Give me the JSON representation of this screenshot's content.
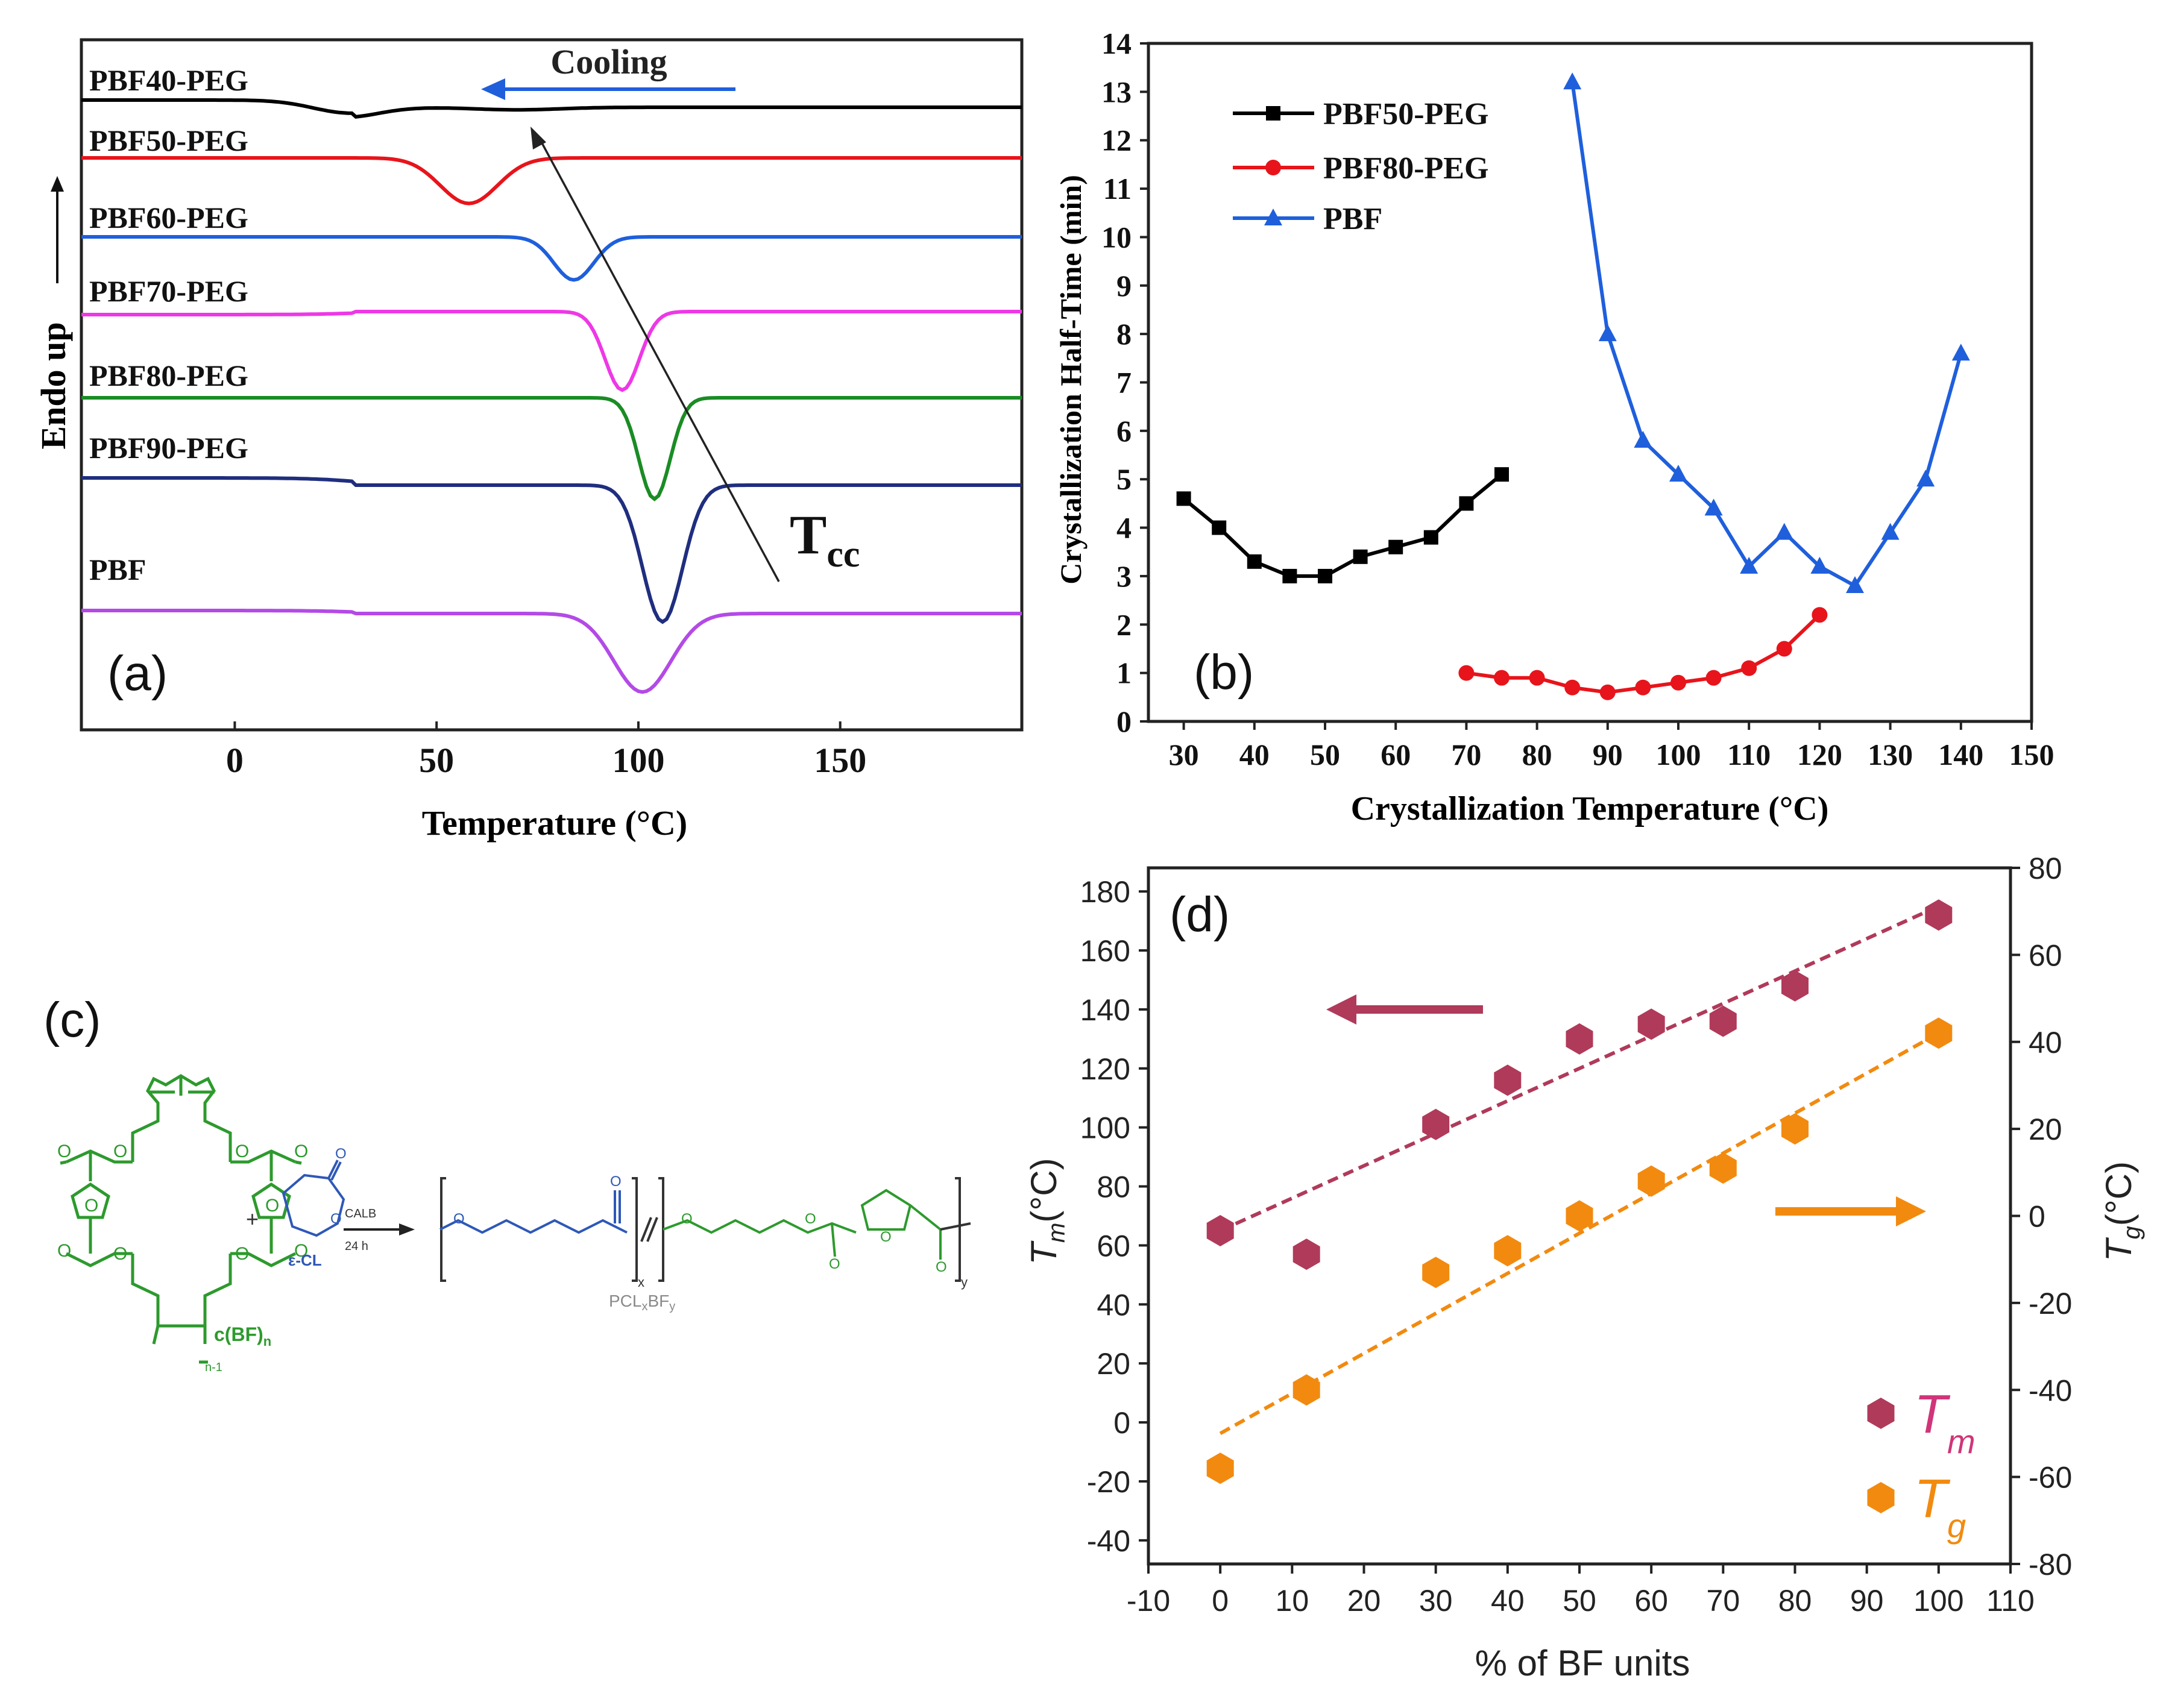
{
  "chart_data": [
    {
      "panel": "(a)",
      "type": "line",
      "title": "",
      "xlabel": "Temperature (°C)",
      "ylabel": "Endo up",
      "xlim": [
        -38,
        195
      ],
      "xticks": [
        0,
        50,
        100,
        150
      ],
      "annotation_cooling": "Cooling",
      "annotation_tcc": "T",
      "annotation_tcc_sub": "cc",
      "series": [
        {
          "name": "PBF40-PEG",
          "color": "#000000",
          "baseline": 12,
          "dips": [
            {
              "t": 27,
              "depth": 4,
              "w": 12
            },
            {
              "t": 70,
              "depth": 1,
              "w": 15
            }
          ]
        },
        {
          "name": "PBF50-PEG",
          "color": "#e8141b",
          "baseline": 0,
          "dips": [
            {
              "t": 58,
              "depth": 18,
              "w": 10
            }
          ]
        },
        {
          "name": "PBF60-PEG",
          "color": "#1f5fdc",
          "baseline": 0,
          "dips": [
            {
              "t": 84,
              "depth": 17,
              "w": 7
            }
          ]
        },
        {
          "name": "PBF70-PEG",
          "color": "#ee38e6",
          "baseline": -5,
          "dips": [
            {
              "t": 96,
              "depth": 31,
              "w": 6
            }
          ]
        },
        {
          "name": "PBF80-PEG",
          "color": "#1a8c24",
          "baseline": 0,
          "dips": [
            {
              "t": 104,
              "depth": 40,
              "w": 5.5
            }
          ]
        },
        {
          "name": "PBF90-PEG",
          "color": "#1f2e7e",
          "baseline": 12,
          "dips": [
            {
              "t": 106,
              "depth": 54,
              "w": 7
            }
          ]
        },
        {
          "name": "PBF",
          "color": "#b34ae6",
          "baseline": 5,
          "dips": [
            {
              "t": 101,
              "depth": 31,
              "w": 10
            }
          ]
        }
      ]
    },
    {
      "panel": "(b)",
      "type": "line",
      "xlabel": "Crystallization Temperature (°C)",
      "ylabel": "Crystallization Half-Time (min)",
      "xlim": [
        25,
        150
      ],
      "ylim": [
        0,
        14
      ],
      "xticks": [
        30,
        40,
        50,
        60,
        70,
        80,
        90,
        100,
        110,
        120,
        130,
        140,
        150
      ],
      "yticks": [
        0,
        1,
        2,
        3,
        4,
        5,
        6,
        7,
        8,
        9,
        10,
        11,
        12,
        13,
        14
      ],
      "series": [
        {
          "name": "PBF50-PEG",
          "color": "#000000",
          "marker": "square",
          "x": [
            30,
            35,
            40,
            45,
            50,
            55,
            60,
            65,
            70,
            75
          ],
          "y": [
            4.6,
            4.0,
            3.3,
            3.0,
            3.0,
            3.4,
            3.6,
            3.8,
            4.5,
            5.1
          ]
        },
        {
          "name": "PBF80-PEG",
          "color": "#e8141b",
          "marker": "circle",
          "x": [
            70,
            75,
            80,
            85,
            90,
            95,
            100,
            105,
            110,
            115,
            120
          ],
          "y": [
            1.0,
            0.9,
            0.9,
            0.7,
            0.6,
            0.7,
            0.8,
            0.9,
            1.1,
            1.5,
            2.2
          ]
        },
        {
          "name": "PBF",
          "color": "#1f5fdc",
          "marker": "triangle",
          "x": [
            85,
            90,
            95,
            100,
            105,
            110,
            115,
            120,
            125,
            130,
            135,
            140
          ],
          "y": [
            13.2,
            8.0,
            5.8,
            5.1,
            4.4,
            3.2,
            3.9,
            3.2,
            2.8,
            3.9,
            5.0,
            7.6
          ]
        }
      ]
    },
    {
      "panel": "(d)",
      "type": "scatter",
      "xlabel": "% of BF units",
      "ylabel_left": "T",
      "ylabel_left_sub": "m",
      "ylabel_left_unit": "(°C)",
      "ylabel_right": "T",
      "ylabel_right_sub": "g",
      "ylabel_right_unit": "(°C)",
      "xlim": [
        -10,
        110
      ],
      "ylim_left": [
        -48,
        188
      ],
      "ylim_right": [
        -80,
        80
      ],
      "xticks": [
        -10,
        0,
        10,
        20,
        30,
        40,
        50,
        60,
        70,
        80,
        90,
        100,
        110
      ],
      "yticks_left": [
        -40,
        -20,
        0,
        20,
        40,
        60,
        80,
        100,
        120,
        140,
        160,
        180
      ],
      "yticks_right": [
        -80,
        -60,
        -40,
        -20,
        0,
        20,
        40,
        60,
        80
      ],
      "series": [
        {
          "name": "T",
          "sub": "m",
          "color": "#b03a5a",
          "label_color": "#d0357a",
          "axis": "left",
          "x": [
            0,
            12,
            30,
            40,
            50,
            60,
            70,
            80,
            100
          ],
          "y": [
            65,
            57,
            101,
            116,
            130,
            135,
            136,
            148,
            172
          ],
          "fit": [
            [
              0,
              65
            ],
            [
              100,
              175
            ]
          ]
        },
        {
          "name": "T",
          "sub": "g",
          "color": "#f28a0f",
          "label_color": "#f28a0f",
          "axis": "right",
          "x": [
            0,
            12,
            30,
            40,
            50,
            60,
            70,
            80,
            100
          ],
          "y": [
            -58,
            -40,
            -13,
            -8,
            0,
            8,
            11,
            20,
            42
          ],
          "fit": [
            [
              0,
              -50
            ],
            [
              100,
              42
            ]
          ]
        }
      ]
    }
  ],
  "panel_c": {
    "label": "(c)",
    "reagent_label": "ε-CL",
    "catalyst": "CALB",
    "time": "24 h",
    "macrocycle_label": "c(BF)",
    "macrocycle_sub": "n",
    "repeat_label": "n-1",
    "product_label": "PCL",
    "product_sub_x": "x",
    "product_mid": "BF",
    "product_sub_y": "y",
    "bracket_x": "x",
    "bracket_y": "y",
    "plus": "+",
    "colors": {
      "green": "#2d9a2d",
      "blue": "#2e58b8",
      "grey": "#8a8a8a",
      "black": "#333333"
    }
  }
}
